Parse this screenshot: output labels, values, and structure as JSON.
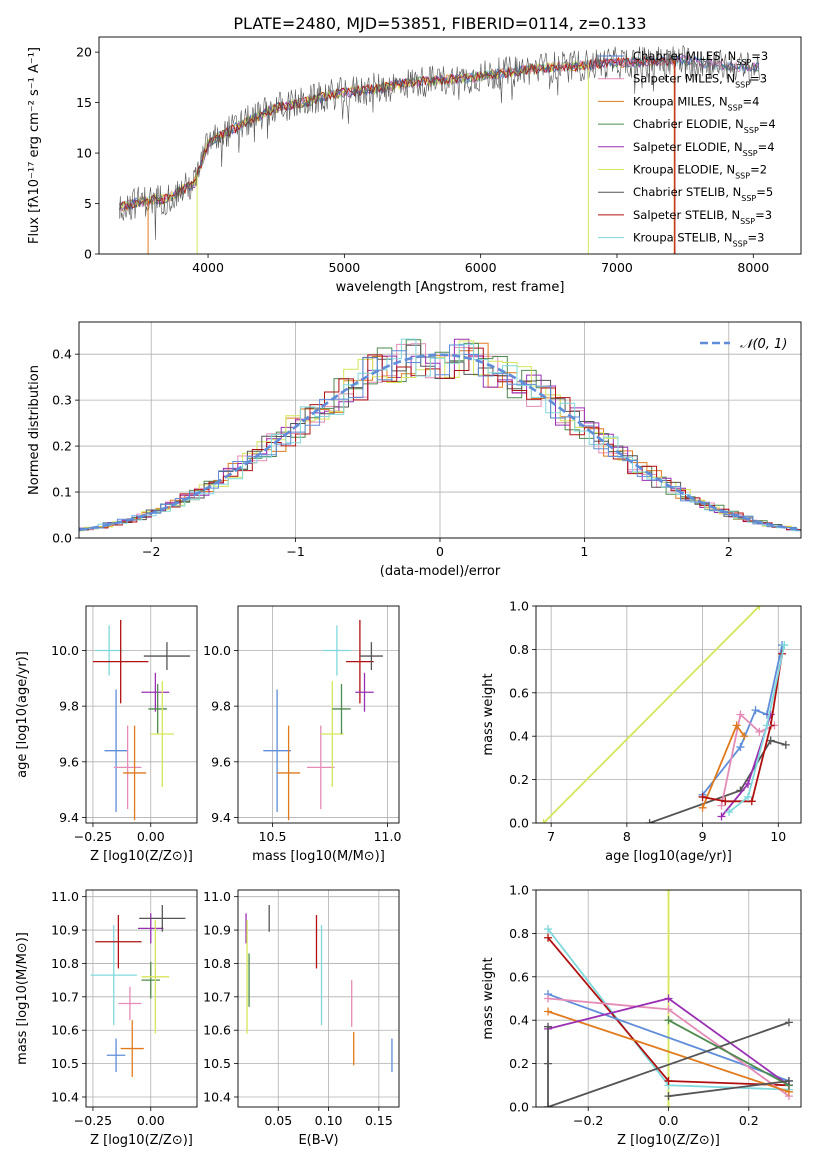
{
  "title": "PLATE=2480, MJD=53851, FIBERID=0114, z=0.133",
  "colors": {
    "chabrier_miles": "#4a78c9",
    "salpeter_miles": "#e07a1c",
    "kroupa_miles": "#e07a1c",
    "chabrier_elodie": "#4e8a4e",
    "salpeter_elodie": "#9a2fb4",
    "kroupa_elodie": "#d6e65a",
    "chabrier_stelib": "#555555",
    "salpeter_stelib": "#b01010",
    "kroupa_stelib": "#7fd8dc",
    "pink": "#e48bb6",
    "blue": "#5f8dd9",
    "orange": "#e07a1c",
    "green": "#4e8a4e",
    "purple": "#9a2fb4",
    "yellow": "#d6e65a",
    "gray": "#555555",
    "red": "#b01010",
    "cyan": "#7fd8dc"
  },
  "chart_data": [
    {
      "type": "line",
      "xlabel": "wavelength [Angstrom, rest frame]",
      "ylabel": "Flux [fλ10⁻¹⁷ erg cm⁻² s⁻¹ A⁻¹]",
      "xlim": [
        3200,
        8350
      ],
      "ylim": [
        0,
        21.5
      ],
      "xticks": [
        "4000",
        "5000",
        "6000",
        "7000",
        "8000"
      ],
      "yticks": [
        "0",
        "5",
        "10",
        "15",
        "20"
      ],
      "legend": [
        "Chabrier MILES, N_SSP=3",
        "Salpeter MILES, N_SSP=3",
        "Kroupa MILES, N_SSP=4",
        "Chabrier ELODIE, N_SSP=4",
        "Salpeter ELODIE, N_SSP=4",
        "Kroupa ELODIE, N_SSP=2",
        "Chabrier STELIB, N_SSP=5",
        "Salpeter STELIB, N_SSP=3",
        "Kroupa STELIB, N_SSP=3"
      ],
      "legend_colors": [
        "#4a78c9",
        "#e48bb6",
        "#e07a1c",
        "#4e8a4e",
        "#9a2fb4",
        "#d6e65a",
        "#555555",
        "#b01010",
        "#7fd8dc"
      ],
      "legend_position": "right",
      "spectrum_x": [
        3350,
        3500,
        3700,
        3900,
        4000,
        4100,
        4300,
        4500,
        4700,
        4900,
        5100,
        5300,
        5500,
        5700,
        5900,
        6100,
        6300,
        6500,
        6700,
        6900,
        7100,
        7300,
        7500,
        7700,
        7900
      ],
      "spectrum_y": [
        4.6,
        5.2,
        5.5,
        7.0,
        11.0,
        11.8,
        13.2,
        14.5,
        15.0,
        15.8,
        16.2,
        16.5,
        17.0,
        17.2,
        17.4,
        17.8,
        18.2,
        18.5,
        18.6,
        18.9,
        19.0,
        19.1,
        19.2,
        18.8,
        18.5
      ]
    },
    {
      "type": "histogram",
      "xlabel": "(data-model)/error",
      "ylabel": "Normed distribution",
      "xlim": [
        -2.5,
        2.5
      ],
      "ylim": [
        0,
        0.47
      ],
      "xticks": [
        "−2",
        "−1",
        "0",
        "1",
        "2"
      ],
      "yticks": [
        "0.0",
        "0.1",
        "0.2",
        "0.3",
        "0.4"
      ],
      "legend": "𝒩(0, 1)",
      "legend_position": "top-right",
      "grid": true
    },
    {
      "type": "errorbar",
      "xlabel": "Z [log10(Z/Z⊙)]",
      "ylabel": "age  [log10(age/yr)]",
      "xlim": [
        -0.28,
        0.2
      ],
      "ylim": [
        9.38,
        10.16
      ],
      "xticks": [
        "−0.25",
        "0.00"
      ],
      "yticks": [
        "9.4",
        "9.6",
        "9.8",
        "10.0"
      ],
      "points": [
        {
          "x": -0.15,
          "y": 9.64,
          "xerr": 0.05,
          "yerr": 0.22,
          "color": "#5f8dd9"
        },
        {
          "x": -0.1,
          "y": 9.58,
          "xerr": 0.06,
          "yerr": 0.15,
          "color": "#e48bb6"
        },
        {
          "x": -0.07,
          "y": 9.56,
          "xerr": 0.05,
          "yerr": 0.17,
          "color": "#e07a1c"
        },
        {
          "x": -0.18,
          "y": 10.0,
          "xerr": 0.06,
          "yerr": 0.09,
          "color": "#7fd8dc"
        },
        {
          "x": -0.13,
          "y": 9.96,
          "xerr": 0.12,
          "yerr": 0.15,
          "color": "#b01010"
        },
        {
          "x": 0.02,
          "y": 9.85,
          "xerr": 0.06,
          "yerr": 0.07,
          "color": "#9a2fb4"
        },
        {
          "x": 0.03,
          "y": 9.79,
          "xerr": 0.04,
          "yerr": 0.09,
          "color": "#4e8a4e"
        },
        {
          "x": 0.05,
          "y": 9.7,
          "xerr": 0.05,
          "yerr": 0.19,
          "color": "#d6e65a"
        },
        {
          "x": 0.07,
          "y": 9.98,
          "xerr": 0.1,
          "yerr": 0.05,
          "color": "#555555"
        }
      ]
    },
    {
      "type": "errorbar",
      "xlabel": "mass [log10(M/M⊙)]",
      "xlim": [
        10.35,
        11.05
      ],
      "ylim": [
        9.38,
        10.16
      ],
      "xticks": [
        "10.5",
        "11.0"
      ],
      "yticks": [
        "9.4",
        "9.6",
        "9.8",
        "10.0"
      ],
      "points": [
        {
          "x": 10.52,
          "y": 9.64,
          "xerr": 0.06,
          "yerr": 0.22,
          "color": "#5f8dd9"
        },
        {
          "x": 10.57,
          "y": 9.56,
          "xerr": 0.05,
          "yerr": 0.17,
          "color": "#e07a1c"
        },
        {
          "x": 10.71,
          "y": 9.58,
          "xerr": 0.06,
          "yerr": 0.15,
          "color": "#e48bb6"
        },
        {
          "x": 10.76,
          "y": 9.7,
          "xerr": 0.05,
          "yerr": 0.19,
          "color": "#d6e65a"
        },
        {
          "x": 10.78,
          "y": 10.0,
          "xerr": 0.06,
          "yerr": 0.09,
          "color": "#7fd8dc"
        },
        {
          "x": 10.8,
          "y": 9.79,
          "xerr": 0.04,
          "yerr": 0.09,
          "color": "#4e8a4e"
        },
        {
          "x": 10.88,
          "y": 9.96,
          "xerr": 0.06,
          "yerr": 0.15,
          "color": "#b01010"
        },
        {
          "x": 10.9,
          "y": 9.85,
          "xerr": 0.04,
          "yerr": 0.07,
          "color": "#9a2fb4"
        },
        {
          "x": 10.93,
          "y": 9.98,
          "xerr": 0.05,
          "yerr": 0.05,
          "color": "#555555"
        }
      ]
    },
    {
      "type": "line",
      "xlabel": "age  [log10(age/yr)]",
      "ylabel": "mass weight",
      "xlim": [
        6.8,
        10.3
      ],
      "ylim": [
        0,
        1.0
      ],
      "xticks": [
        "7",
        "8",
        "9",
        "10"
      ],
      "yticks": [
        "0.0",
        "0.2",
        "0.4",
        "0.6",
        "0.8",
        "1.0"
      ],
      "grid": true,
      "series": [
        {
          "color": "#d6e65a",
          "x": [
            6.9,
            9.75
          ],
          "y": [
            0.0,
            1.0
          ]
        },
        {
          "color": "#555555",
          "x": [
            8.3,
            9.5,
            9.9,
            10.1
          ],
          "y": [
            0.0,
            0.15,
            0.38,
            0.36
          ]
        },
        {
          "color": "#5f8dd9",
          "x": [
            9.0,
            9.5,
            9.7,
            9.85,
            10.05
          ],
          "y": [
            0.13,
            0.35,
            0.52,
            0.5,
            0.82
          ]
        },
        {
          "color": "#e48bb6",
          "x": [
            9.25,
            9.5,
            9.75,
            9.95
          ],
          "y": [
            0.08,
            0.5,
            0.42,
            0.45
          ]
        },
        {
          "color": "#e07a1c",
          "x": [
            9.0,
            9.45,
            9.55
          ],
          "y": [
            0.07,
            0.45,
            0.4
          ]
        },
        {
          "color": "#9a2fb4",
          "x": [
            9.25,
            9.6,
            9.9
          ],
          "y": [
            0.03,
            0.18,
            0.5
          ]
        },
        {
          "color": "#b01010",
          "x": [
            9.0,
            9.3,
            9.65,
            9.9,
            10.05
          ],
          "y": [
            0.12,
            0.1,
            0.1,
            0.45,
            0.78
          ]
        },
        {
          "color": "#7fd8dc",
          "x": [
            9.35,
            9.6,
            9.85,
            10.08
          ],
          "y": [
            0.05,
            0.12,
            0.45,
            0.82
          ]
        }
      ]
    },
    {
      "type": "errorbar",
      "xlabel": "Z [log10(Z/Z⊙)]",
      "ylabel": "mass [log10(M/M⊙)]",
      "xlim": [
        -0.28,
        0.2
      ],
      "ylim": [
        10.37,
        11.02
      ],
      "xticks": [
        "−0.25",
        "0.00"
      ],
      "yticks": [
        "10.4",
        "10.5",
        "10.6",
        "10.7",
        "10.8",
        "10.9",
        "11.0"
      ],
      "points": [
        {
          "x": -0.15,
          "y": 10.525,
          "xerr": 0.04,
          "yerr": 0.05,
          "color": "#5f8dd9"
        },
        {
          "x": -0.08,
          "y": 10.545,
          "xerr": 0.05,
          "yerr": 0.085,
          "color": "#e07a1c"
        },
        {
          "x": -0.09,
          "y": 10.68,
          "xerr": 0.05,
          "yerr": 0.05,
          "color": "#e48bb6"
        },
        {
          "x": -0.16,
          "y": 10.765,
          "xerr": 0.1,
          "yerr": 0.15,
          "color": "#7fd8dc"
        },
        {
          "x": -0.14,
          "y": 10.865,
          "xerr": 0.1,
          "yerr": 0.08,
          "color": "#b01010"
        },
        {
          "x": 0.0,
          "y": 10.905,
          "xerr": 0.055,
          "yerr": 0.045,
          "color": "#9a2fb4"
        },
        {
          "x": 0.0,
          "y": 10.75,
          "xerr": 0.04,
          "yerr": 0.055,
          "color": "#4e8a4e"
        },
        {
          "x": 0.02,
          "y": 10.76,
          "xerr": 0.06,
          "yerr": 0.17,
          "color": "#d6e65a"
        },
        {
          "x": 0.05,
          "y": 10.935,
          "xerr": 0.1,
          "yerr": 0.04,
          "color": "#555555"
        }
      ]
    },
    {
      "type": "errorbar",
      "xlabel": "E(B-V)",
      "xlim": [
        0.01,
        0.17
      ],
      "ylim": [
        10.37,
        11.02
      ],
      "xticks": [
        "0.05",
        "0.10",
        "0.15"
      ],
      "yticks": [
        "10.4",
        "10.5",
        "10.6",
        "10.7",
        "10.8",
        "10.9",
        "11.0"
      ],
      "points": [
        {
          "x": 0.018,
          "y": 10.905,
          "yerr": 0.045,
          "color": "#9a2fb4"
        },
        {
          "x": 0.019,
          "y": 10.76,
          "yerr": 0.17,
          "color": "#d6e65a"
        },
        {
          "x": 0.021,
          "y": 10.75,
          "yerr": 0.08,
          "color": "#4e8a4e"
        },
        {
          "x": 0.041,
          "y": 10.935,
          "yerr": 0.04,
          "color": "#555555"
        },
        {
          "x": 0.088,
          "y": 10.865,
          "yerr": 0.08,
          "color": "#b01010"
        },
        {
          "x": 0.093,
          "y": 10.765,
          "yerr": 0.15,
          "color": "#7fd8dc"
        },
        {
          "x": 0.123,
          "y": 10.68,
          "yerr": 0.07,
          "color": "#e48bb6"
        },
        {
          "x": 0.125,
          "y": 10.545,
          "yerr": 0.05,
          "color": "#e07a1c"
        },
        {
          "x": 0.163,
          "y": 10.525,
          "yerr": 0.05,
          "color": "#5f8dd9"
        }
      ]
    },
    {
      "type": "line",
      "xlabel": "Z [log10(Z/Z⊙)]",
      "ylabel": "mass weight",
      "xlim": [
        -0.33,
        0.33
      ],
      "ylim": [
        0,
        1.0
      ],
      "xticks": [
        "−0.2",
        "0.0",
        "0.2"
      ],
      "yticks": [
        "0.0",
        "0.2",
        "0.4",
        "0.6",
        "0.8",
        "1.0"
      ],
      "grid": true,
      "series": [
        {
          "color": "#d6e65a",
          "x": [
            0.0,
            0.0
          ],
          "y": [
            0.0,
            1.0
          ]
        },
        {
          "color": "#7fd8dc",
          "x": [
            -0.3,
            0.0,
            0.3
          ],
          "y": [
            0.82,
            0.1,
            0.08
          ]
        },
        {
          "color": "#b01010",
          "x": [
            -0.3,
            0.0,
            0.3
          ],
          "y": [
            0.78,
            0.12,
            0.1
          ]
        },
        {
          "color": "#5f8dd9",
          "x": [
            -0.3,
            0.3
          ],
          "y": [
            0.52,
            0.12
          ]
        },
        {
          "color": "#e48bb6",
          "x": [
            -0.3,
            0.0,
            0.3
          ],
          "y": [
            0.5,
            0.45,
            0.05
          ]
        },
        {
          "color": "#e07a1c",
          "x": [
            -0.3,
            0.3
          ],
          "y": [
            0.44,
            0.07
          ]
        },
        {
          "color": "#9a2fb4",
          "x": [
            -0.3,
            0.0,
            0.3
          ],
          "y": [
            0.36,
            0.5,
            0.1
          ]
        },
        {
          "color": "#555555",
          "x": [
            -0.3,
            0.3
          ],
          "y": [
            0.0,
            0.39
          ]
        },
        {
          "color": "#555555",
          "x": [
            -0.3,
            -0.3,
            -0.3
          ],
          "y": [
            0.0,
            0.2,
            0.37
          ]
        },
        {
          "color": "#4e8a4e",
          "x": [
            0.0,
            0.3
          ],
          "y": [
            0.4,
            0.1
          ]
        },
        {
          "color": "#555555",
          "x": [
            0.0,
            0.3
          ],
          "y": [
            0.05,
            0.12
          ]
        }
      ]
    }
  ]
}
